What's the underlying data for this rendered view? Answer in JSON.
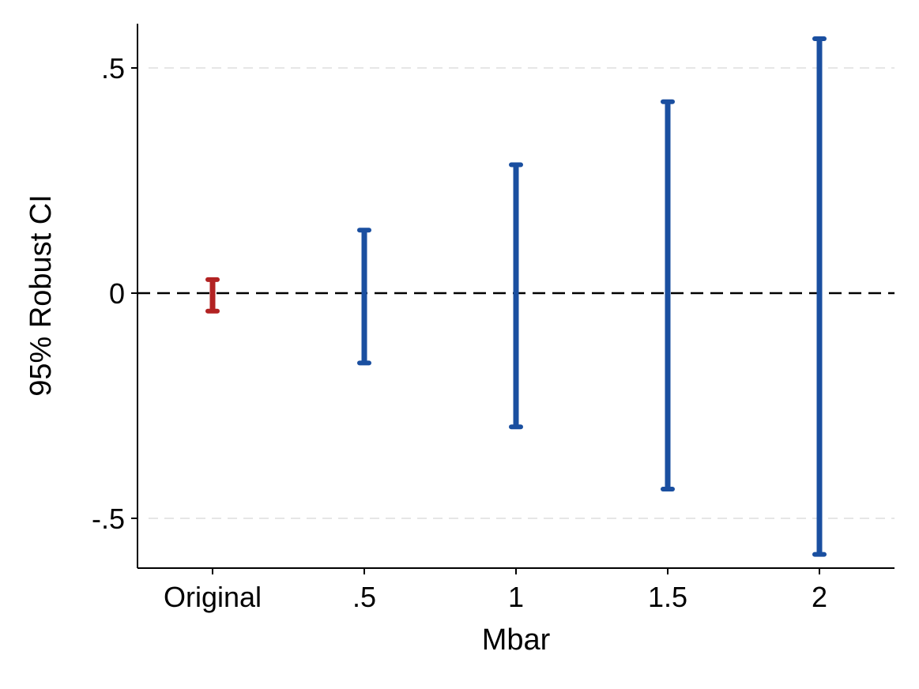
{
  "chart_data": {
    "type": "errorbar",
    "title": "",
    "xlabel": "Mbar",
    "ylabel": "95% Robust CI",
    "categories": [
      "Original",
      ".5",
      "1",
      "1.5",
      "2"
    ],
    "intervals": [
      {
        "category": "Original",
        "lower": -0.04,
        "upper": 0.03,
        "color": "#b22222"
      },
      {
        "category": ".5",
        "lower": -0.155,
        "upper": 0.14,
        "color": "#1a4fa0"
      },
      {
        "category": "1",
        "lower": -0.297,
        "upper": 0.285,
        "color": "#1a4fa0"
      },
      {
        "category": "1.5",
        "lower": -0.435,
        "upper": 0.425,
        "color": "#1a4fa0"
      },
      {
        "category": "2",
        "lower": -0.58,
        "upper": 0.565,
        "color": "#1a4fa0"
      }
    ],
    "y_ticks": [
      {
        "value": -0.5,
        "label": "-.5"
      },
      {
        "value": 0,
        "label": "0"
      },
      {
        "value": 0.5,
        "label": ".5"
      }
    ],
    "ylim": [
      -0.61,
      0.6
    ],
    "reference_line": {
      "value": 0,
      "style": "dashed",
      "color": "#000000"
    },
    "grid": {
      "horizontal": true,
      "color": "#e6e6e6",
      "style": "dashed"
    },
    "legend": "none"
  }
}
